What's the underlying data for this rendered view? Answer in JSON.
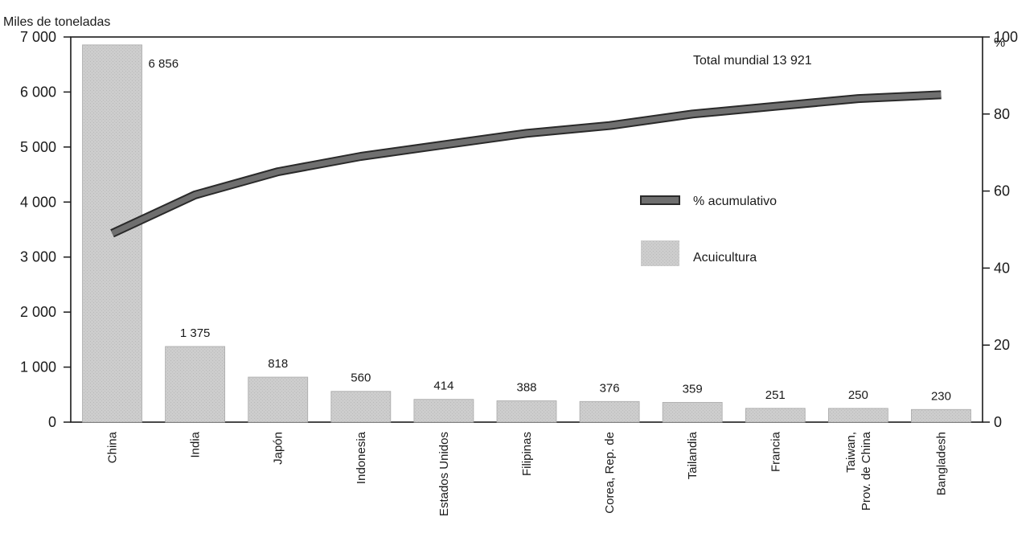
{
  "chart_data": {
    "type": "bar",
    "ylabel_left": "Miles de toneladas",
    "ylabel_right": "%",
    "left_axis": {
      "min": 0,
      "max": 7000,
      "ticks": [
        0,
        1000,
        2000,
        3000,
        4000,
        5000,
        6000,
        7000
      ],
      "tick_labels": [
        "0",
        "1 000",
        "2 000",
        "3 000",
        "4 000",
        "5 000",
        "6 000",
        "7 000"
      ]
    },
    "right_axis": {
      "min": 0,
      "max": 100,
      "ticks": [
        0,
        20,
        40,
        60,
        80,
        100
      ],
      "tick_labels": [
        "0",
        "20",
        "40",
        "60",
        "80",
        "100"
      ]
    },
    "categories": [
      [
        "China"
      ],
      [
        "India"
      ],
      [
        "Japón"
      ],
      [
        "Indonesia"
      ],
      [
        "Estados Unidos"
      ],
      [
        "Filipinas"
      ],
      [
        "Corea, Rep. de"
      ],
      [
        "Tailandia"
      ],
      [
        "Francia"
      ],
      [
        "Taiwan,",
        "Prov. de China"
      ],
      [
        "Bangladesh"
      ]
    ],
    "bars": {
      "name": "Acuicultura",
      "color": "#c8c8c8",
      "values": [
        6856,
        1375,
        818,
        560,
        414,
        388,
        376,
        359,
        251,
        250,
        230
      ],
      "value_labels": [
        "6 856",
        "1 375",
        "818",
        "560",
        "414",
        "388",
        "376",
        "359",
        "251",
        "250",
        "230"
      ]
    },
    "line": {
      "name": "% acumulativo",
      "color": "#6f6f6f",
      "values": [
        49,
        59,
        65,
        69,
        72,
        75,
        77,
        80,
        82,
        84,
        85
      ]
    },
    "annotation": "Total mundial 13 921",
    "legend_position": "right-middle",
    "grid": false
  }
}
